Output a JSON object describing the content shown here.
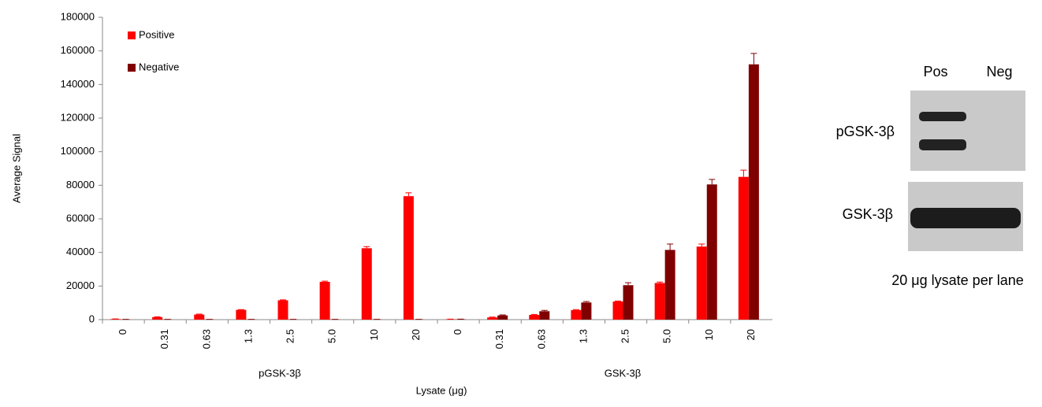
{
  "chart_data": {
    "type": "bar",
    "y_label": "Average Signal",
    "x_label": "Lysate (μg)",
    "categories": [
      "0",
      "0.31",
      "0.63",
      "1.3",
      "2.5",
      "5.0",
      "10",
      "20",
      "0",
      "0.31",
      "0.63",
      "1.3",
      "2.5",
      "5.0",
      "10",
      "20"
    ],
    "groups": [
      "pGSK-3β",
      "GSK-3β"
    ],
    "series": [
      {
        "name": "Positive",
        "color": "#ff0000",
        "values": [
          300,
          1500,
          3000,
          5800,
          11500,
          22500,
          42500,
          73500,
          200,
          1300,
          2800,
          5700,
          10800,
          21800,
          43500,
          85000
        ],
        "errors": [
          100,
          200,
          300,
          200,
          300,
          400,
          1000,
          2000,
          100,
          200,
          300,
          300,
          300,
          600,
          1500,
          4000
        ]
      },
      {
        "name": "Negative",
        "color": "#800000",
        "values": [
          100,
          100,
          100,
          100,
          100,
          100,
          100,
          100,
          200,
          2500,
          5000,
          10200,
          20500,
          41500,
          80500,
          152000
        ],
        "errors": [
          50,
          50,
          50,
          50,
          50,
          50,
          50,
          50,
          100,
          300,
          500,
          600,
          1500,
          3500,
          3000,
          6500
        ]
      }
    ],
    "ylim": [
      0,
      180000
    ],
    "yticks": [
      0,
      20000,
      40000,
      60000,
      80000,
      100000,
      120000,
      140000,
      160000,
      180000
    ],
    "legend": "top-left"
  },
  "blot": {
    "lanes": [
      "Pos",
      "Neg"
    ],
    "rows": [
      "pGSK-3β",
      "GSK-3β"
    ],
    "caption": "20 μg lysate per lane"
  }
}
